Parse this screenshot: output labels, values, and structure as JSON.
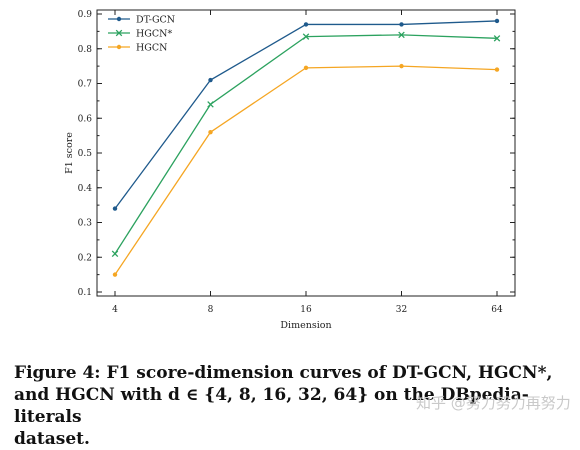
{
  "chart_data": {
    "type": "line",
    "categories": [
      "4",
      "8",
      "16",
      "32",
      "64"
    ],
    "series": [
      {
        "name": "DT-GCN",
        "values": [
          0.34,
          0.71,
          0.87,
          0.87,
          0.88
        ],
        "color": "#1f5a8c",
        "marker": "dot"
      },
      {
        "name": "HGCN*",
        "values": [
          0.21,
          0.64,
          0.835,
          0.84,
          0.83
        ],
        "color": "#2ca25f",
        "marker": "x"
      },
      {
        "name": "HGCN",
        "values": [
          0.15,
          0.56,
          0.745,
          0.75,
          0.74
        ],
        "color": "#f5a623",
        "marker": "dot"
      }
    ],
    "xlabel": "Dimension",
    "ylabel": "F1 score",
    "ylim": [
      0.1,
      0.9
    ],
    "yticks": [
      "0.1",
      "0.2",
      "0.3",
      "0.4",
      "0.5",
      "0.6",
      "0.7",
      "0.8",
      "0.9"
    ],
    "grid": false,
    "legend_position": "top-left"
  },
  "caption": {
    "line1": "Figure 4: F1 score-dimension curves of DT-GCN, HGCN*,",
    "line2": "and HGCN with d ∈ {4, 8, 16, 32, 64} on the DBpedia-literals",
    "line3": "dataset."
  },
  "watermark": "知乎 @努力努力再努力"
}
